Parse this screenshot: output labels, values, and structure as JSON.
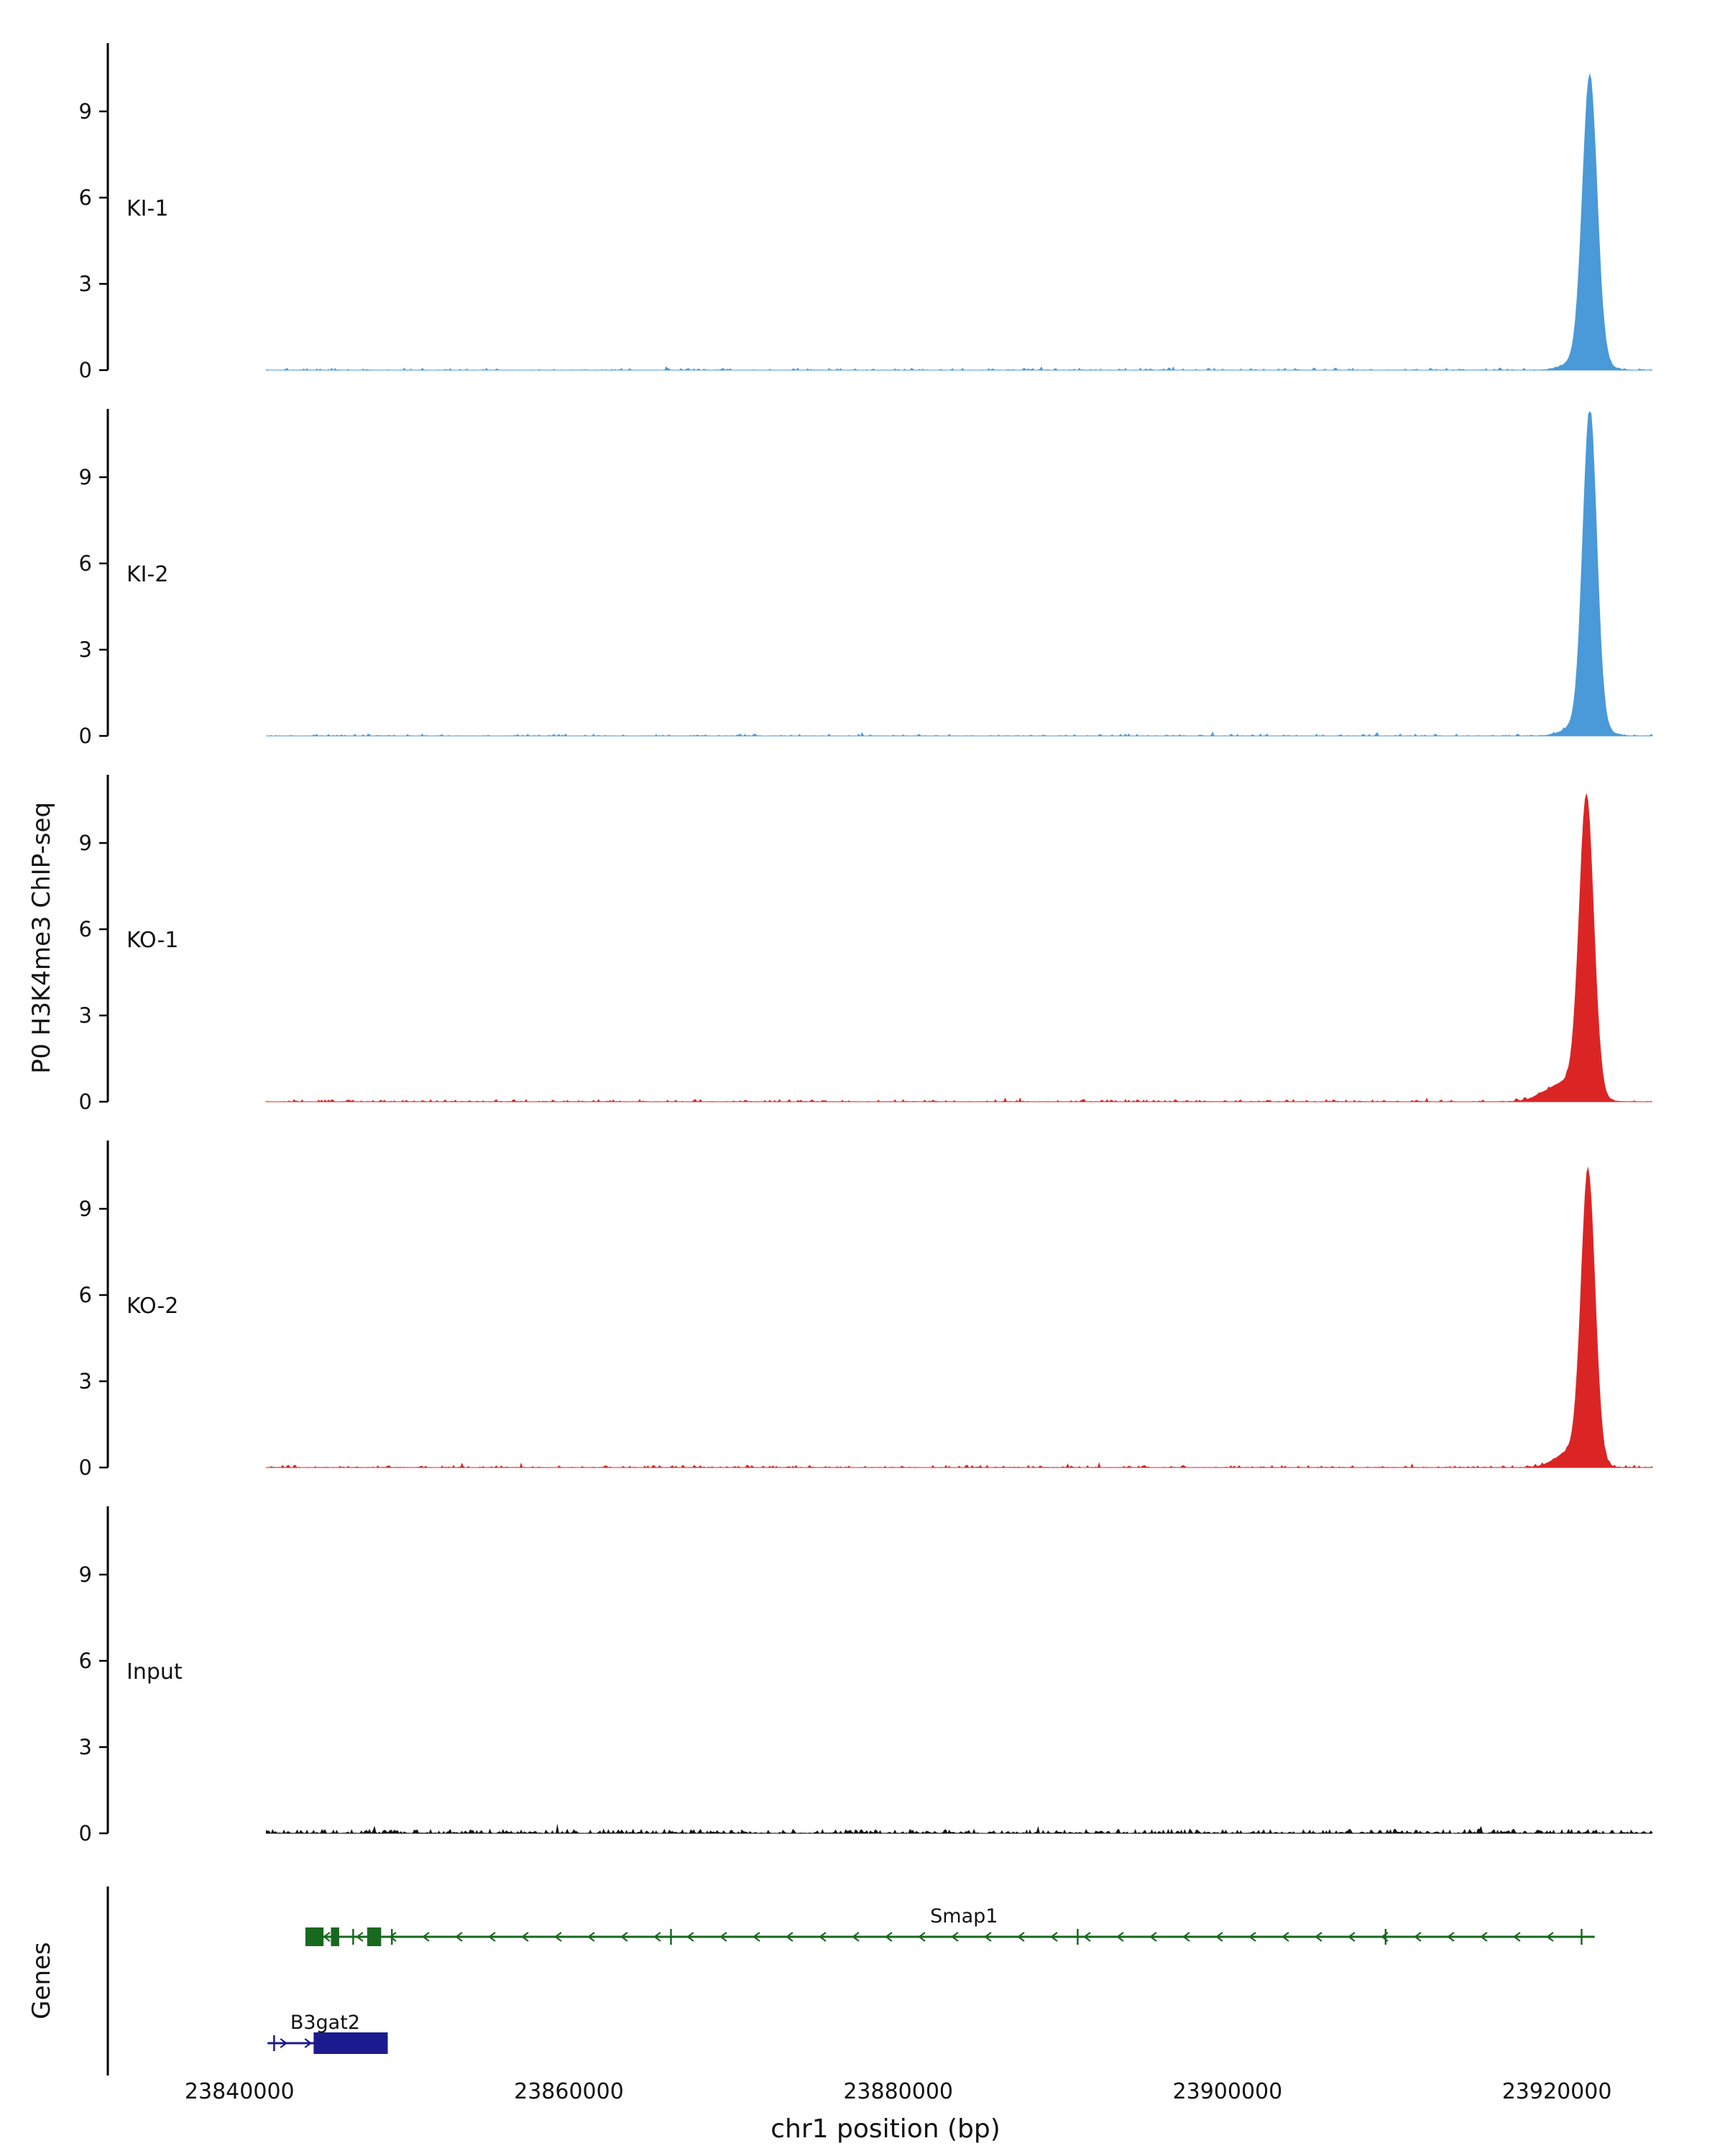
{
  "chart_data": {
    "type": "area",
    "description": "Genome browser style ChIP-seq coverage tracks with gene models",
    "xlabel": "chr1 position (bp)",
    "ylabel": "P0 H3K4me3 ChIP-seq",
    "genes_axis_label": "Genes",
    "x_domain": [
      23832000,
      23926500
    ],
    "x_ticks": [
      23840000,
      23860000,
      23880000,
      23900000,
      23920000
    ],
    "x_tick_labels": [
      "23840000",
      "23860000",
      "23880000",
      "23900000",
      "23920000"
    ],
    "y_ticks": [
      0,
      3,
      6,
      9
    ],
    "y_max": 11.3,
    "data_range": [
      23841600,
      23925800
    ],
    "peak_region_bp": 23922000,
    "tracks": [
      {
        "label": "KI-1",
        "color": "#4A99D8",
        "noise_amp": 0.055,
        "noise_density": 0.5,
        "noise_seed": 11,
        "peaks": [
          {
            "center": 23922000,
            "sigma": 450,
            "height": 9.9
          },
          {
            "center": 23921700,
            "sigma": 1000,
            "height": 0.45
          }
        ]
      },
      {
        "label": "KI-2",
        "color": "#4A99D8",
        "noise_amp": 0.055,
        "noise_density": 0.5,
        "noise_seed": 22,
        "peaks": [
          {
            "center": 23922000,
            "sigma": 430,
            "height": 11.0
          },
          {
            "center": 23921700,
            "sigma": 1000,
            "height": 0.5
          }
        ]
      },
      {
        "label": "KO-1",
        "color": "#DB2525",
        "noise_amp": 0.06,
        "noise_density": 0.55,
        "noise_seed": 33,
        "peaks": [
          {
            "center": 23921800,
            "sigma": 450,
            "height": 10.3
          },
          {
            "center": 23920600,
            "sigma": 1200,
            "height": 0.7
          }
        ]
      },
      {
        "label": "KO-2",
        "color": "#DB2525",
        "noise_amp": 0.06,
        "noise_density": 0.55,
        "noise_seed": 44,
        "peaks": [
          {
            "center": 23921900,
            "sigma": 430,
            "height": 10.0
          },
          {
            "center": 23921000,
            "sigma": 1000,
            "height": 0.6
          }
        ]
      },
      {
        "label": "Input",
        "color": "#141414",
        "noise_amp": 0.1,
        "noise_density": 0.92,
        "noise_seed": 55,
        "peaks": []
      }
    ],
    "genes": [
      {
        "name": "Smap1",
        "color": "#17691D",
        "strand": "-",
        "start": 23844000,
        "end": 23922300,
        "exons": [
          [
            23844000,
            23845100
          ],
          [
            23845550,
            23846050
          ],
          [
            23847750,
            23848600
          ]
        ],
        "exon_ticks": [
          23846900,
          23849250,
          23866200,
          23890900,
          23909600,
          23921500
        ],
        "label_x": 23884000
      },
      {
        "name": "B3gat2",
        "color": "#1B1B8F",
        "strand": "+",
        "start": 23841700,
        "end": 23849000,
        "exons": [
          [
            23844500,
            23849000
          ]
        ],
        "exon_ticks": [
          23842100
        ],
        "label_x": 23845200
      }
    ]
  }
}
